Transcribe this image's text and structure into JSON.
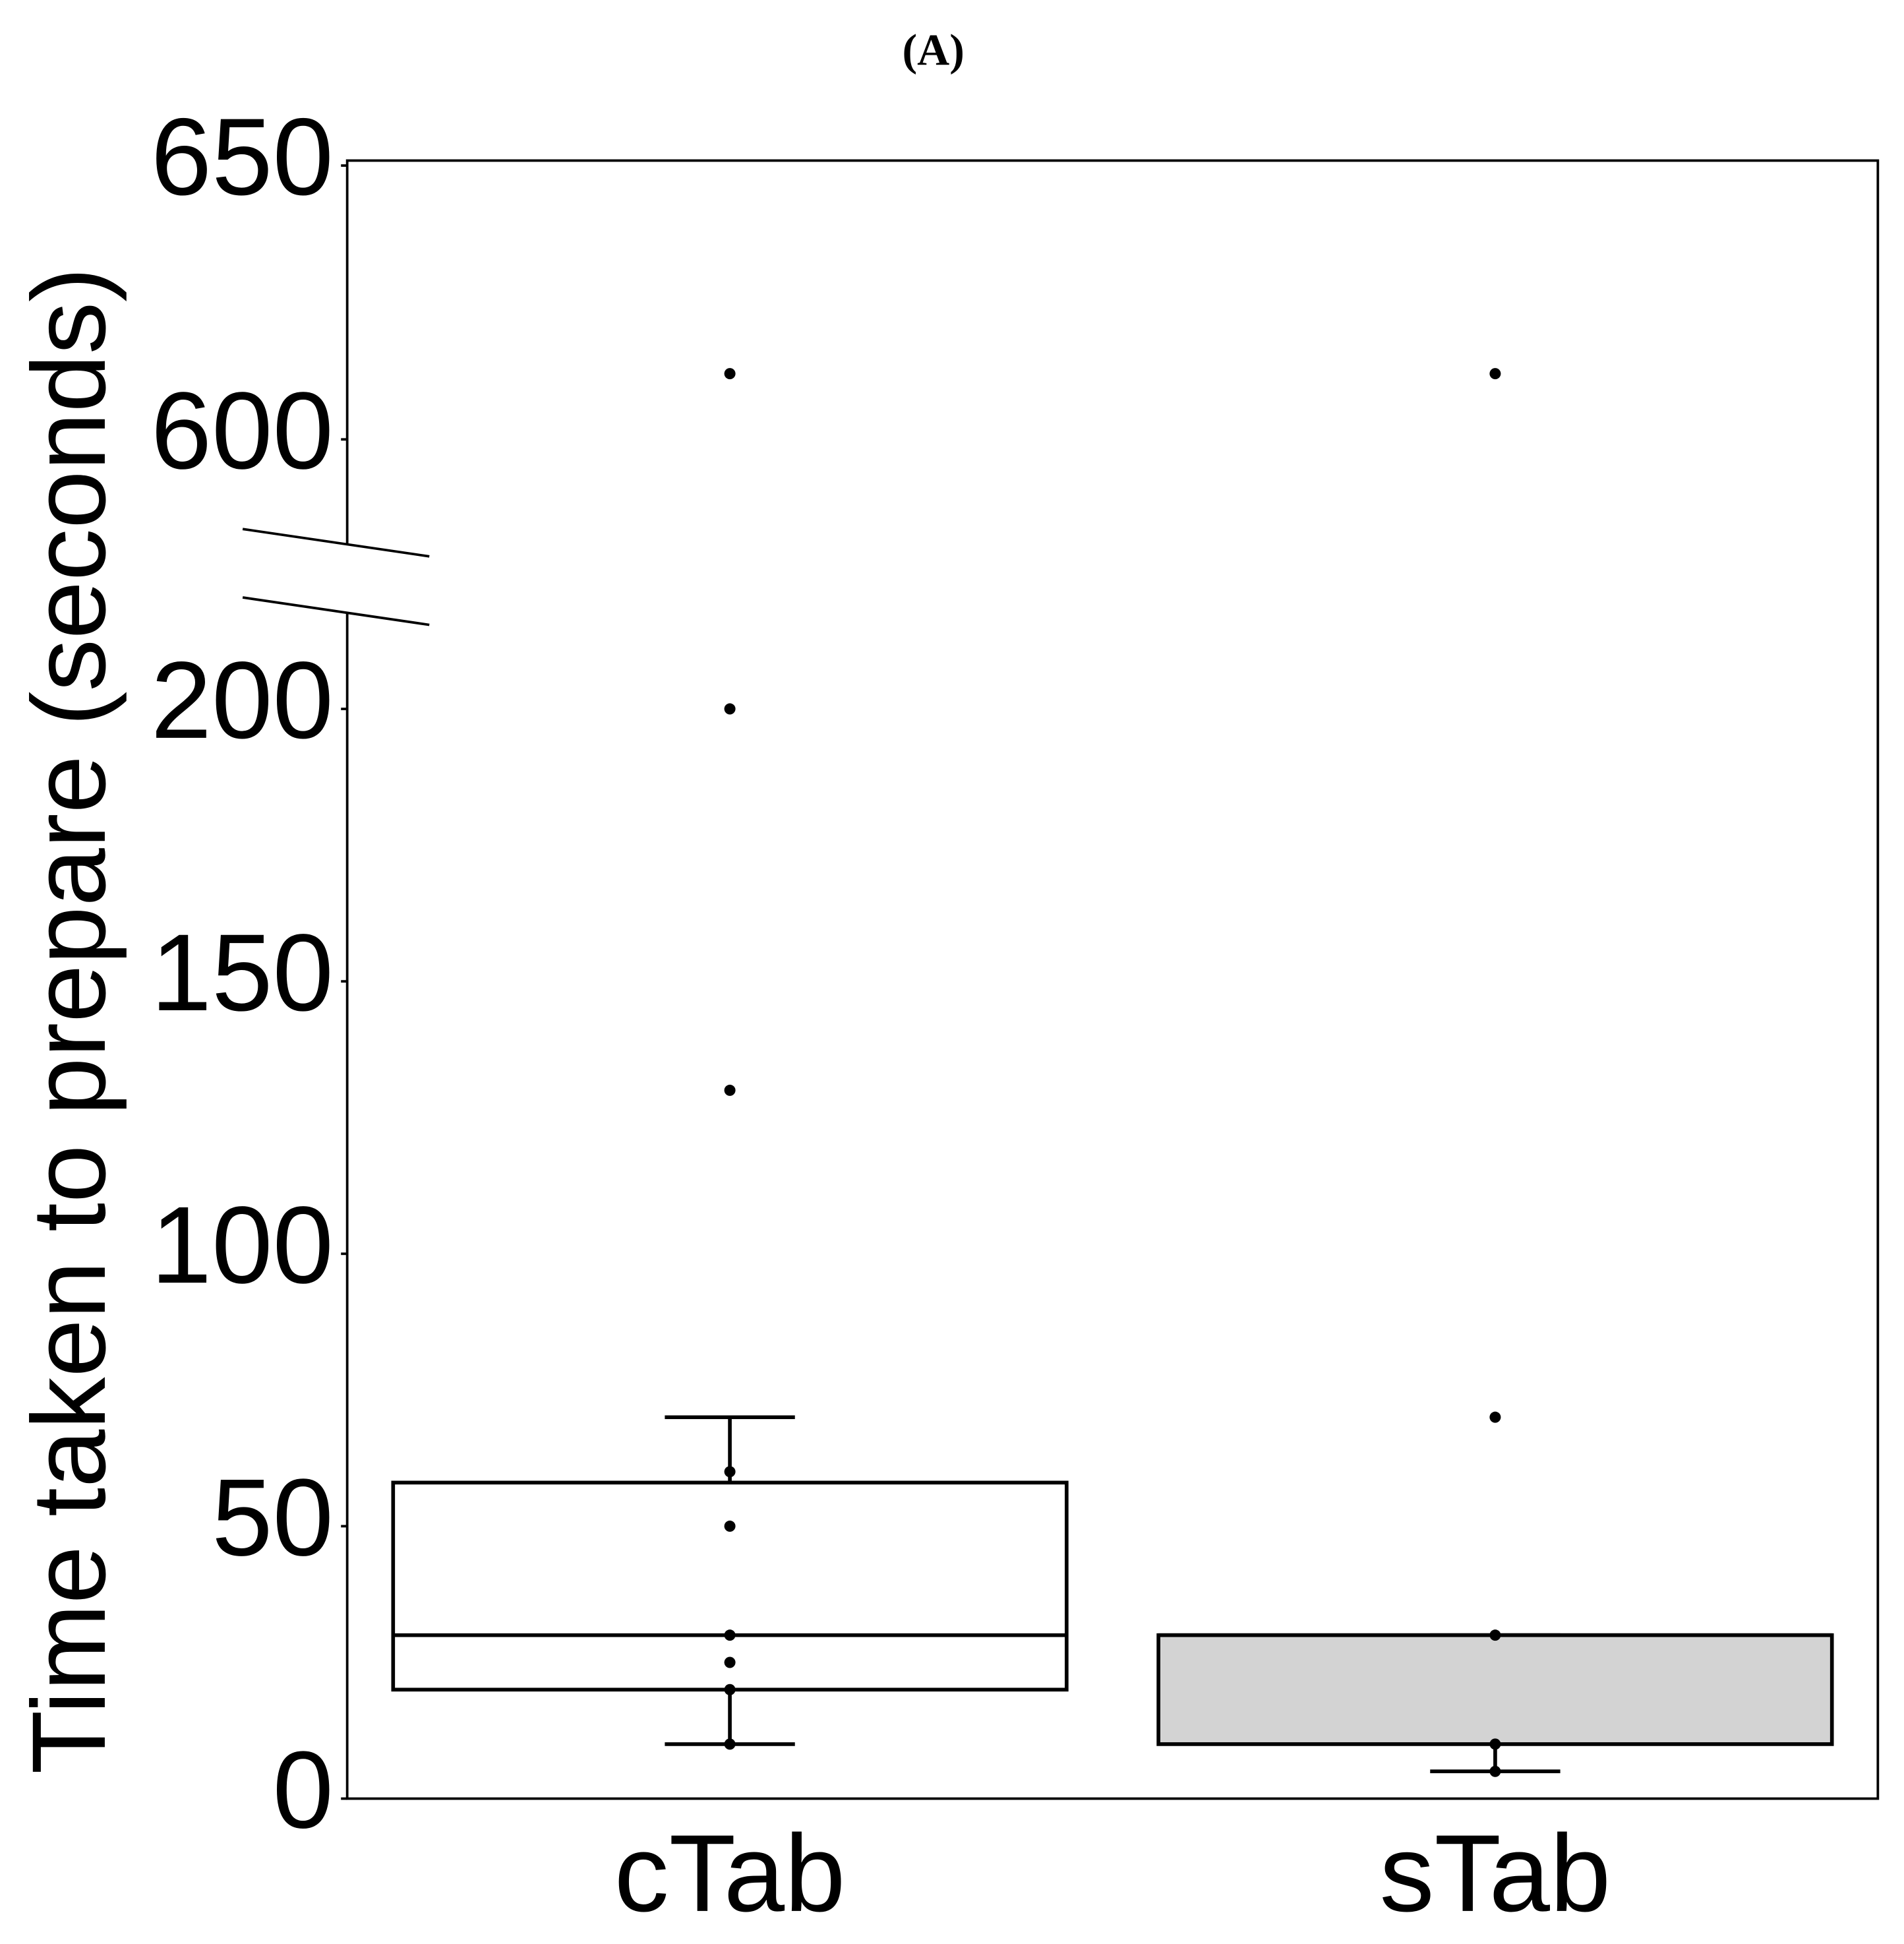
{
  "chart_data": {
    "type": "box",
    "title": "(A)",
    "y_label": "Time taken to prepare (seconds)",
    "categories": [
      "cTab",
      "sTab"
    ],
    "box_colors": [
      "#ffffff",
      "#d3d3d3"
    ],
    "boxes": [
      {
        "q1": 20,
        "median": 30,
        "q3": 58,
        "whisker_low": 10,
        "whisker_high": 70,
        "points": [
          612,
          200,
          130,
          60,
          50,
          30,
          25,
          20,
          10
        ]
      },
      {
        "q1": 10,
        "median": 30,
        "q3": 30,
        "whisker_low": 5,
        "whisker_high": 30,
        "points": [
          612,
          70,
          30,
          10,
          5
        ]
      }
    ],
    "ylim": [
      0,
      650
    ],
    "axis_break": [
      220,
      580
    ],
    "yticks": [
      0,
      50,
      100,
      150,
      200,
      600,
      650
    ]
  }
}
